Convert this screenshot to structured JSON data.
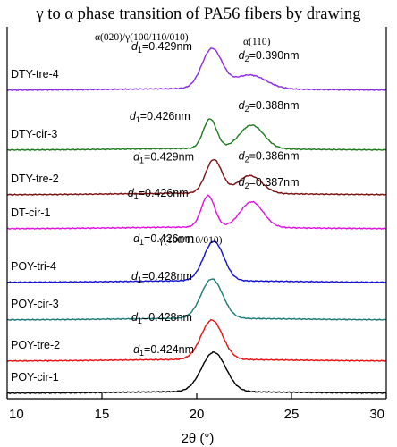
{
  "chart_data": {
    "type": "line",
    "title": "γ to α phase transition of PA56 fibers by drawing",
    "xlabel": "2θ (°)",
    "xlim": [
      10,
      30
    ],
    "xticks": [
      "10",
      "15",
      "20",
      "25",
      "30"
    ],
    "y_scale": "stacked, arbitrary intensity",
    "annotations": {
      "alpha_gamma_header": "α(020)/γ(100/110/010)",
      "alpha_header": "α(110)",
      "gamma_header": "γ(100/110/010)"
    },
    "series": [
      {
        "name": "DTY-tre-4",
        "color": "#8a2be2",
        "type": "alpha",
        "peaks": [
          {
            "x": 20.8,
            "h": 1.0,
            "w": 0.75
          },
          {
            "x": 22.8,
            "h": 0.35,
            "w": 1.2
          }
        ],
        "d1": "=0.429nm",
        "d2": "=0.390nm"
      },
      {
        "name": "DTY-cir-3",
        "color": "#1e7a1e",
        "type": "alpha",
        "peaks": [
          {
            "x": 20.7,
            "h": 0.75,
            "w": 0.5
          },
          {
            "x": 22.9,
            "h": 0.6,
            "w": 0.9
          }
        ],
        "d1": "=0.426nm",
        "d2": "=0.388nm"
      },
      {
        "name": "DTY-tre-2",
        "color": "#7a1010",
        "type": "alpha",
        "peaks": [
          {
            "x": 20.9,
            "h": 0.85,
            "w": 0.6
          },
          {
            "x": 22.8,
            "h": 0.45,
            "w": 0.9
          }
        ],
        "d1": "=0.429nm",
        "d2": "=0.386nm"
      },
      {
        "name": "DT-cir-1",
        "color": "#e010e0",
        "type": "alpha",
        "peaks": [
          {
            "x": 20.6,
            "h": 0.8,
            "w": 0.5
          },
          {
            "x": 22.9,
            "h": 0.65,
            "w": 0.85
          }
        ],
        "d1": "=0.426nm",
        "d2": "=0.387nm"
      },
      {
        "name": "POY-tri-4",
        "color": "#1010d0",
        "type": "gamma",
        "peaks": [
          {
            "x": 20.9,
            "h": 1.0,
            "w": 0.75
          }
        ],
        "d1": "=0.426nm"
      },
      {
        "name": "POY-cir-3",
        "color": "#1a7a78",
        "type": "gamma",
        "peaks": [
          {
            "x": 20.8,
            "h": 1.0,
            "w": 0.8
          }
        ],
        "d1": "=0.428nm"
      },
      {
        "name": "POY-tre-2",
        "color": "#e81010",
        "type": "gamma",
        "peaks": [
          {
            "x": 20.8,
            "h": 1.0,
            "w": 0.8
          }
        ],
        "d1": "=0.428nm"
      },
      {
        "name": "POY-cir-1",
        "color": "#000000",
        "type": "gamma",
        "peaks": [
          {
            "x": 20.9,
            "h": 1.0,
            "w": 0.9
          }
        ],
        "d1": "=0.424nm"
      }
    ]
  }
}
